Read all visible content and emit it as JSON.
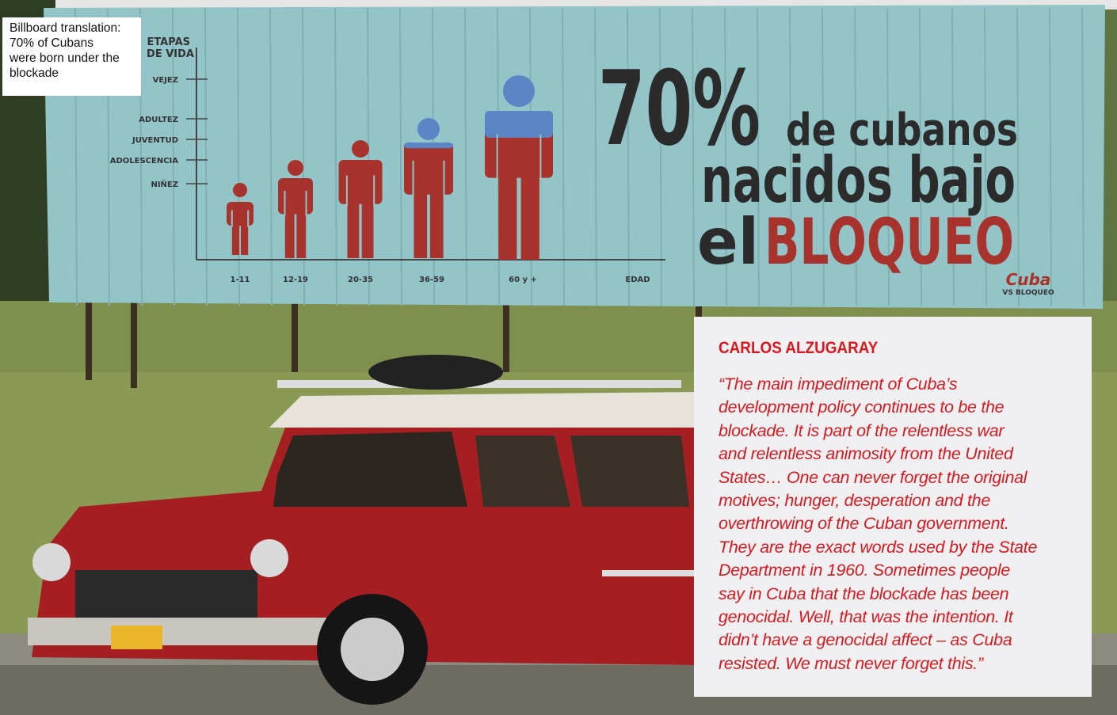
{
  "caption": {
    "text_lines": [
      "Billboard translation:",
      "70% of Cubans",
      "were born under the",
      "blockade"
    ]
  },
  "billboard": {
    "axis_title_lines": [
      "ETAPAS",
      "DE VIDA"
    ],
    "stages": [
      "VEJEZ",
      "ADULTEZ",
      "JUVENTUD",
      "ADOLESCENCIA",
      "NIÑEZ"
    ],
    "ages": [
      "1-11",
      "12-19",
      "20-35",
      "36-59",
      "60 y +"
    ],
    "axis_x_label": "EDAD",
    "headline": {
      "percent": "70%",
      "line1": "de cubanos",
      "line2": "nacidos bajo",
      "line3_start": "el",
      "line3_end": "BLOQUEO"
    },
    "logo": {
      "name": "Cuba",
      "sub": "VS BLOQUEO"
    }
  },
  "quote": {
    "name": "CARLOS ALZUGARAY",
    "lines": [
      "“The main impediment of Cuba’s",
      "development policy continues to be the",
      "blockade. It is part of the relentless war",
      "and relentless animosity from the United",
      "States… One can never forget the original",
      "motives; hunger, desperation and the",
      "overthrowing of the Cuban government.",
      "They are the exact words used by the State",
      "Department in 1960. Sometimes people",
      "say in Cuba that the blockade has been",
      "genocidal. Well, that was the intention. It",
      "didn’t have a genocidal affect – as Cuba",
      "resisted. We must never forget this.”"
    ]
  }
}
